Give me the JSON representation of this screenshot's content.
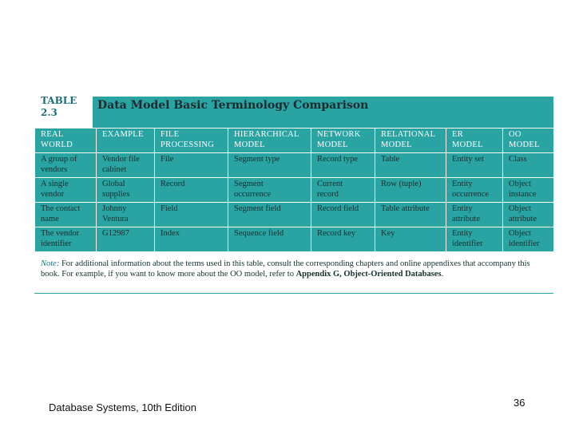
{
  "figure": {
    "table_label_line1": "TABLE",
    "table_label_line2": "2.3",
    "title": "Data Model Basic Terminology Comparison",
    "headers": [
      [
        "REAL",
        "WORLD"
      ],
      [
        "EXAMPLE",
        ""
      ],
      [
        "FILE",
        "PROCESSING"
      ],
      [
        "HIERARCHICAL",
        "MODEL"
      ],
      [
        "NETWORK",
        "MODEL"
      ],
      [
        "RELATIONAL",
        "MODEL"
      ],
      [
        "ER",
        "MODEL"
      ],
      [
        "OO",
        "MODEL"
      ]
    ],
    "rows": [
      [
        [
          "A group of",
          "vendors"
        ],
        [
          "Vendor file",
          "cabinet"
        ],
        [
          "File",
          ""
        ],
        [
          "Segment type",
          ""
        ],
        [
          "Record type",
          ""
        ],
        [
          "Table",
          ""
        ],
        [
          "Entity set",
          ""
        ],
        [
          "Class",
          ""
        ]
      ],
      [
        [
          "A single",
          "vendor"
        ],
        [
          "Global",
          "supplies"
        ],
        [
          "Record",
          ""
        ],
        [
          "Segment",
          "occurrence"
        ],
        [
          "Current",
          "record"
        ],
        [
          "Row (tuple)",
          ""
        ],
        [
          "Entity",
          "occurrence"
        ],
        [
          "Object",
          "instance"
        ]
      ],
      [
        [
          "The contact",
          "name"
        ],
        [
          "Johnny",
          "Ventura"
        ],
        [
          "Field",
          ""
        ],
        [
          "Segment field",
          ""
        ],
        [
          "Record field",
          ""
        ],
        [
          "Table attribute",
          ""
        ],
        [
          "Entity",
          "attribute"
        ],
        [
          "Object",
          "attribute"
        ]
      ],
      [
        [
          "The vendor",
          "identifier"
        ],
        [
          "G12987",
          ""
        ],
        [
          "Index",
          ""
        ],
        [
          "Sequence field",
          ""
        ],
        [
          "Record key",
          ""
        ],
        [
          "Key",
          ""
        ],
        [
          "Entity",
          "identifier"
        ],
        [
          "Object",
          "identifier"
        ]
      ]
    ],
    "note": {
      "label": "Note:",
      "text": " For additional information about the terms used in this table, consult the corresponding chapters and online appendixes that accompany this book. For example, if you want to know more about the OO model, refer to ",
      "bold_ref": "Appendix G, Object-Oriented Databases",
      "end": "."
    }
  },
  "footer": {
    "book": "Database Systems, 10th Edition",
    "page_number": "36"
  },
  "colors": {
    "teal": "#2aa3a3",
    "dark_teal": "#1b6f78"
  }
}
